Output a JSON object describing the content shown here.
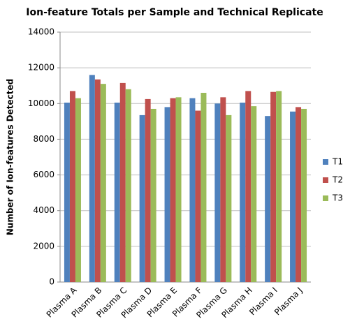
{
  "chart_data": {
    "type": "bar",
    "title": "Ion-feature Totals per Sample and Technical Replicate",
    "y_label": "Number of Ion-features Detected",
    "categories": [
      "Plasma A",
      "Plasma B",
      "Plasma C",
      "Plasma D",
      "Plasma E",
      "Plasma F",
      "Plasma G",
      "Plasma H",
      "Plasma I",
      "Plasma J"
    ],
    "series": [
      {
        "name": "T1",
        "color": "#4f81bd",
        "values": [
          10050,
          11600,
          10050,
          9350,
          9800,
          10300,
          10000,
          10050,
          9300,
          9550
        ]
      },
      {
        "name": "T2",
        "color": "#c0504d",
        "values": [
          10700,
          11350,
          11150,
          10250,
          10300,
          9600,
          10350,
          10700,
          10650,
          9800
        ]
      },
      {
        "name": "T3",
        "color": "#9bbb59",
        "values": [
          10300,
          11100,
          10800,
          9700,
          10350,
          10600,
          9350,
          9850,
          10700,
          9700
        ]
      }
    ],
    "ylim": [
      0,
      14000
    ],
    "yticks": [
      0,
      2000,
      4000,
      6000,
      8000,
      10000,
      12000,
      14000
    ],
    "grid": true,
    "legend": "right"
  }
}
